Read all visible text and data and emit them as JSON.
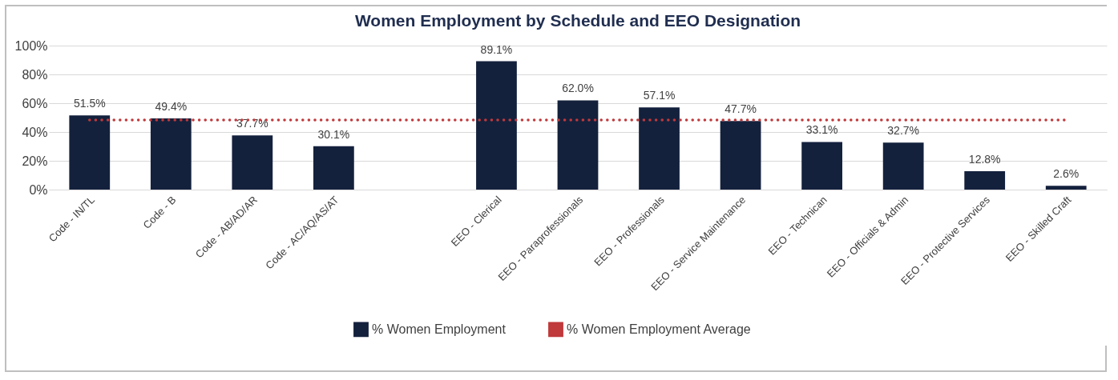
{
  "chart_data": {
    "type": "bar",
    "title": "Women Employment by Schedule and EEO Designation",
    "categories": [
      "Code - IN/TL",
      "Code - B",
      "Code -  AB/AD/AR",
      "Code - AC/AQ/AS/AT",
      null,
      "EEO - Clerical",
      "EEO - Paraprofessionals",
      "EEO - Professionals",
      "EEO - Service Maintenance",
      "EEO - Technican",
      "EEO - Officials & Admin",
      "EEO - Protective Services",
      "EEO - Skilled Craft"
    ],
    "series": [
      {
        "name": "% Women Employment",
        "color": "#14213d",
        "values": [
          51.5,
          49.4,
          37.7,
          30.1,
          null,
          89.1,
          62.0,
          57.1,
          47.7,
          33.1,
          32.7,
          12.8,
          2.6
        ],
        "value_labels": [
          "51.5%",
          "49.4%",
          "37.7%",
          "30.1%",
          null,
          "89.1%",
          "62.0%",
          "57.1%",
          "47.7%",
          "33.1%",
          "32.7%",
          "12.8%",
          "2.6%"
        ]
      },
      {
        "name": "% Women Employment Average",
        "type": "line",
        "color": "#c0393b",
        "line_style": "dotted",
        "marker": "none",
        "values": [
          48.3,
          48.3,
          48.3,
          48.3,
          48.3,
          48.3,
          48.3,
          48.3,
          48.3,
          48.3,
          48.3,
          48.3,
          48.3
        ]
      }
    ],
    "ylim": [
      0,
      100
    ],
    "yticks": [
      {
        "value": 0,
        "label": "0%"
      },
      {
        "value": 20,
        "label": "20%"
      },
      {
        "value": 40,
        "label": "40%"
      },
      {
        "value": 60,
        "label": "60%"
      },
      {
        "value": 80,
        "label": "80%"
      },
      {
        "value": 100,
        "label": "100%"
      }
    ],
    "grid": "y",
    "legend": "bottom"
  }
}
